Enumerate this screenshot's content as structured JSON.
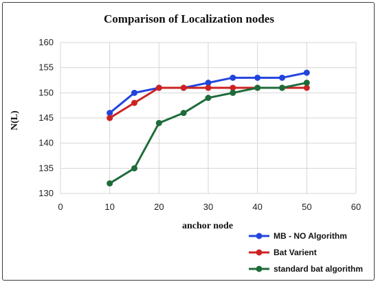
{
  "chart_data": {
    "type": "line",
    "title": "Comparison of Localization nodes",
    "xlabel": "anchor node",
    "ylabel": "N(L)",
    "xlim": [
      0,
      60
    ],
    "ylim": [
      130,
      160
    ],
    "x_ticks": [
      "0",
      "10",
      "20",
      "30",
      "40",
      "50",
      "60"
    ],
    "y_ticks": [
      "130",
      "135",
      "140",
      "145",
      "150",
      "155",
      "160"
    ],
    "grid": true,
    "legend_position": "bottom-right",
    "x": [
      10,
      15,
      20,
      25,
      30,
      35,
      40,
      45,
      50
    ],
    "series": [
      {
        "name": "MB - NO Algorithm",
        "color": "#2244dd",
        "values": [
          146,
          150,
          151,
          151,
          152,
          153,
          153,
          153,
          154
        ]
      },
      {
        "name": "Bat Varient",
        "color": "#cc2222",
        "values": [
          145,
          148,
          151,
          151,
          151,
          151,
          151,
          151,
          151
        ]
      },
      {
        "name": "standard bat algorithm",
        "color": "#1e6b3a",
        "values": [
          132,
          135,
          144,
          146,
          149,
          150,
          151,
          151,
          152
        ]
      }
    ]
  }
}
